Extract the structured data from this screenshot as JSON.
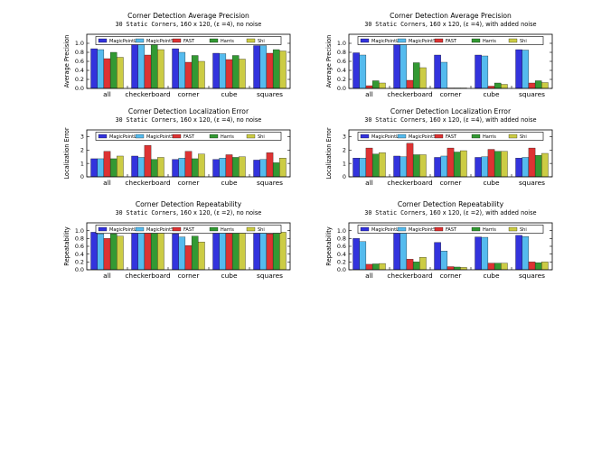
{
  "figure": {
    "series_names": [
      "MagicPointL",
      "MagicPointS",
      "FAST",
      "Harris",
      "Shi"
    ],
    "series_colors": [
      "#3333dd",
      "#55bbee",
      "#dd3333",
      "#339933",
      "#cccc44"
    ],
    "categories": [
      "all",
      "checkerboard",
      "corner",
      "cube",
      "squares"
    ]
  },
  "chart_data": [
    {
      "type": "bar",
      "title": "Corner Detection Average Precision",
      "subtitle_mono": "30 Static Corners",
      "subtitle_rest": ", 160 x 120, (ε =4), no noise",
      "ylabel": "Average Precision",
      "ylim": [
        0,
        1.2
      ],
      "yticks": [
        "0.0",
        "0.2",
        "0.4",
        "0.6",
        "0.8",
        "1.0"
      ],
      "ytick_values": [
        0,
        0.2,
        0.4,
        0.6,
        0.8,
        1.0
      ],
      "legend": "top",
      "series": [
        {
          "values": [
            0.88,
            0.99,
            0.88,
            0.78,
            0.95
          ]
        },
        {
          "values": [
            0.86,
            0.99,
            0.8,
            0.77,
            0.95
          ]
        },
        {
          "values": [
            0.66,
            0.74,
            0.58,
            0.64,
            0.78
          ]
        },
        {
          "values": [
            0.8,
            0.99,
            0.73,
            0.73,
            0.86
          ]
        },
        {
          "values": [
            0.69,
            0.86,
            0.6,
            0.65,
            0.83
          ]
        }
      ]
    },
    {
      "type": "bar",
      "title": "Corner Detection Average Precision",
      "subtitle_mono": "30 Static Corners",
      "subtitle_rest": ", 160 x 120, (ε =4), with added noise",
      "ylabel": "Average Precision",
      "ylim": [
        0,
        1.2
      ],
      "yticks": [
        "0.0",
        "0.2",
        "0.4",
        "0.6",
        "0.8",
        "1.0"
      ],
      "ytick_values": [
        0,
        0.2,
        0.4,
        0.6,
        0.8,
        1.0
      ],
      "legend": "top",
      "series": [
        {
          "values": [
            0.79,
            0.99,
            0.74,
            0.74,
            0.86
          ]
        },
        {
          "values": [
            0.74,
            0.99,
            0.58,
            0.72,
            0.85
          ]
        },
        {
          "values": [
            0.06,
            0.18,
            0.01,
            0.05,
            0.12
          ]
        },
        {
          "values": [
            0.17,
            0.57,
            0.01,
            0.12,
            0.17
          ]
        },
        {
          "values": [
            0.12,
            0.46,
            0.01,
            0.09,
            0.13
          ]
        }
      ]
    },
    {
      "type": "bar",
      "title": "Corner Detection Localization Error",
      "subtitle_mono": "30 Static Corners",
      "subtitle_rest": ", 160 x 120, (ε =4), no noise",
      "ylabel": "Localization Error",
      "ylim": [
        0,
        3.5
      ],
      "yticks": [
        "0",
        "1",
        "2",
        "3"
      ],
      "ytick_values": [
        0,
        1,
        2,
        3
      ],
      "legend": "top",
      "series": [
        {
          "values": [
            1.35,
            1.55,
            1.3,
            1.3,
            1.25
          ]
        },
        {
          "values": [
            1.35,
            1.45,
            1.4,
            1.4,
            1.3
          ]
        },
        {
          "values": [
            1.9,
            2.35,
            1.9,
            1.65,
            1.8
          ]
        },
        {
          "values": [
            1.35,
            1.3,
            1.35,
            1.45,
            1.05
          ]
        },
        {
          "values": [
            1.55,
            1.45,
            1.7,
            1.5,
            1.4
          ]
        }
      ]
    },
    {
      "type": "bar",
      "title": "Corner Detection Localization Error",
      "subtitle_mono": "30 Static Corners",
      "subtitle_rest": ", 160 x 120, (ε =4), with added noise",
      "ylabel": "Localization Error",
      "ylim": [
        0,
        3.5
      ],
      "yticks": [
        "0",
        "1",
        "2",
        "3"
      ],
      "ytick_values": [
        0,
        1,
        2,
        3
      ],
      "legend": "top",
      "series": [
        {
          "values": [
            1.4,
            1.55,
            1.45,
            1.45,
            1.4
          ]
        },
        {
          "values": [
            1.4,
            1.5,
            1.55,
            1.5,
            1.45
          ]
        },
        {
          "values": [
            2.15,
            2.5,
            2.15,
            2.05,
            2.15
          ]
        },
        {
          "values": [
            1.7,
            1.65,
            1.85,
            1.9,
            1.6
          ]
        },
        {
          "values": [
            1.8,
            1.65,
            1.95,
            1.9,
            1.75
          ]
        }
      ]
    },
    {
      "type": "bar",
      "title": "Corner Detection Repeatability",
      "subtitle_mono": "30 Static Corners",
      "subtitle_rest": ", 160 x 120, (ε =2), no noise",
      "ylabel": "Repeatability",
      "ylim": [
        0,
        1.2
      ],
      "yticks": [
        "0.0",
        "0.2",
        "0.4",
        "0.6",
        "0.8",
        "1.0"
      ],
      "ytick_values": [
        0,
        0.2,
        0.4,
        0.6,
        0.8,
        1.0
      ],
      "legend": "top",
      "series": [
        {
          "values": [
            0.96,
            0.99,
            0.92,
            0.98,
            0.99
          ]
        },
        {
          "values": [
            0.92,
            0.99,
            0.84,
            0.97,
            0.99
          ]
        },
        {
          "values": [
            0.8,
            0.95,
            0.62,
            0.93,
            0.92
          ]
        },
        {
          "values": [
            0.92,
            0.97,
            0.86,
            0.97,
            0.97
          ]
        },
        {
          "values": [
            0.86,
            0.98,
            0.71,
            0.96,
            0.96
          ]
        }
      ]
    },
    {
      "type": "bar",
      "title": "Corner Detection Repeatability",
      "subtitle_mono": "30 Static Corners",
      "subtitle_rest": ", 160 x 120, (ε =2), with added noise",
      "ylabel": "Repeatability",
      "ylim": [
        0,
        1.2
      ],
      "yticks": [
        "0.0",
        "0.2",
        "0.4",
        "0.6",
        "0.8",
        "1.0"
      ],
      "ytick_values": [
        0,
        0.2,
        0.4,
        0.6,
        0.8,
        1.0
      ],
      "legend": "top",
      "series": [
        {
          "values": [
            0.8,
            0.99,
            0.7,
            0.84,
            0.88
          ]
        },
        {
          "values": [
            0.72,
            0.99,
            0.48,
            0.83,
            0.85
          ]
        },
        {
          "values": [
            0.14,
            0.27,
            0.08,
            0.17,
            0.2
          ]
        },
        {
          "values": [
            0.15,
            0.2,
            0.07,
            0.17,
            0.18
          ]
        },
        {
          "values": [
            0.16,
            0.32,
            0.06,
            0.17,
            0.2
          ]
        }
      ]
    }
  ]
}
